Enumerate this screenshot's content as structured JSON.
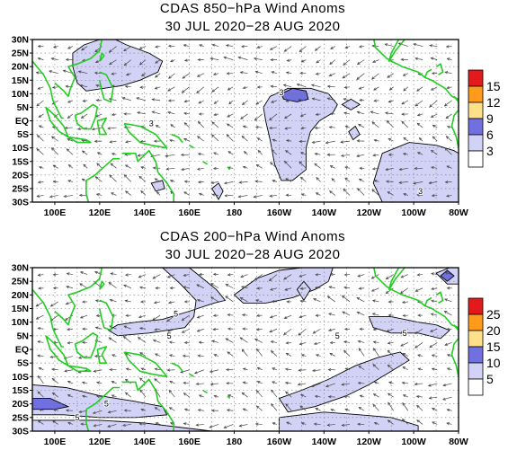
{
  "chart_data": [
    {
      "type": "map",
      "title_line1": "CDAS 850−hPa Wind Anoms",
      "title_line2": "30 JUL 2020−28 AUG 2020",
      "lon_labels": [
        "100E",
        "120E",
        "140E",
        "160E",
        "180",
        "160W",
        "140W",
        "120W",
        "100W",
        "80W"
      ],
      "lat_labels": [
        "30N",
        "25N",
        "20N",
        "15N",
        "10N",
        "5N",
        "EQ",
        "5S",
        "10S",
        "15S",
        "20S",
        "25S",
        "30S"
      ],
      "lon_range": [
        90,
        280
      ],
      "lat_range": [
        -30,
        30
      ],
      "contour_labels": [
        "3",
        "3",
        "3"
      ],
      "colorbar_levels": [
        "3",
        "6",
        "9",
        "12",
        "15"
      ],
      "colorbar_colors": [
        "#ffffff",
        "#d2d2f7",
        "#7070e0",
        "#ffe08a",
        "#ff9a1a",
        "#e31a1c"
      ],
      "contour_interval": 3
    },
    {
      "type": "map",
      "title_line1": "CDAS 200−hPa Wind Anoms",
      "title_line2": "30 JUL 2020−28 AUG 2020",
      "lon_labels": [
        "100E",
        "120E",
        "140E",
        "160E",
        "180",
        "160W",
        "140W",
        "120W",
        "100W",
        "80W"
      ],
      "lat_labels": [
        "30N",
        "25N",
        "20N",
        "15N",
        "10N",
        "5N",
        "EQ",
        "5S",
        "10S",
        "15S",
        "20S",
        "25S",
        "30S"
      ],
      "lon_range": [
        90,
        280
      ],
      "lat_range": [
        -30,
        30
      ],
      "contour_labels": [
        "5",
        "5",
        "5",
        "5",
        "5",
        "5"
      ],
      "colorbar_levels": [
        "5",
        "10",
        "15",
        "20",
        "25"
      ],
      "colorbar_colors": [
        "#ffffff",
        "#d2d2f7",
        "#7070e0",
        "#ffe08a",
        "#ff9a1a",
        "#e31a1c"
      ],
      "contour_interval": 5
    }
  ]
}
